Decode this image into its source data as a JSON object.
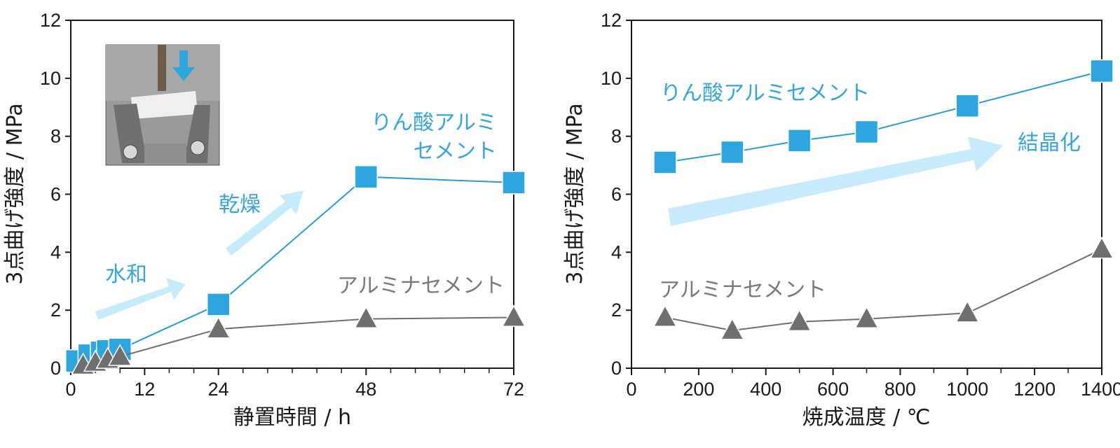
{
  "colors": {
    "blue": "#2ea6dd",
    "blue_line": "#2a9bd0",
    "gray": "#6f6f6f",
    "arrow": "#c6ecfb",
    "axis": "#1a1a1a"
  },
  "chart_data": [
    {
      "type": "line",
      "xlabel": "静置時間 / h",
      "ylabel": "3点曲げ強度 / MPa",
      "xlim": [
        0,
        72
      ],
      "ylim": [
        0,
        12
      ],
      "xticks": [
        0,
        12,
        24,
        48,
        72
      ],
      "yticks": [
        0,
        2,
        4,
        6,
        8,
        10,
        12
      ],
      "grid": false,
      "series": [
        {
          "name": "りん酸アルミセメント",
          "marker": "square",
          "color": "#2ea6dd",
          "x": [
            1,
            3,
            5,
            6,
            8,
            24,
            48,
            72
          ],
          "y": [
            0.25,
            0.45,
            0.55,
            0.6,
            0.65,
            2.2,
            6.6,
            6.4
          ]
        },
        {
          "name": "アルミナセメント",
          "marker": "triangle",
          "color": "#6f6f6f",
          "x": [
            2,
            4,
            6,
            8,
            24,
            48,
            72
          ],
          "y": [
            0.1,
            0.2,
            0.3,
            0.4,
            1.35,
            1.7,
            1.75
          ]
        }
      ],
      "annotations": {
        "hydration": "水和",
        "drying": "乾燥",
        "blue_series_line1": "りん酸アルミ",
        "blue_series_line2": "セメント",
        "gray_series": "アルミナセメント"
      },
      "inset_photo": "three-point-bending-test-photo"
    },
    {
      "type": "line",
      "xlabel": "焼成温度 / ℃",
      "ylabel": "3点曲げ強度 / MPa",
      "xlim": [
        0,
        1400
      ],
      "ylim": [
        0,
        12
      ],
      "xticks": [
        0,
        200,
        400,
        600,
        800,
        1000,
        1200,
        1400
      ],
      "yticks": [
        0,
        2,
        4,
        6,
        8,
        10,
        12
      ],
      "grid": false,
      "series": [
        {
          "name": "りん酸アルミセメント",
          "marker": "square",
          "color": "#2ea6dd",
          "x": [
            100,
            300,
            500,
            700,
            1000,
            1400
          ],
          "y": [
            7.1,
            7.45,
            7.85,
            8.15,
            9.05,
            10.25
          ]
        },
        {
          "name": "アルミナセメント",
          "marker": "triangle",
          "color": "#6f6f6f",
          "x": [
            100,
            300,
            500,
            700,
            1000,
            1400
          ],
          "y": [
            1.75,
            1.3,
            1.6,
            1.7,
            1.9,
            4.1
          ]
        }
      ],
      "annotations": {
        "crystallization": "結晶化",
        "blue_series": "りん酸アルミセメント",
        "gray_series": "アルミナセメント"
      }
    }
  ]
}
